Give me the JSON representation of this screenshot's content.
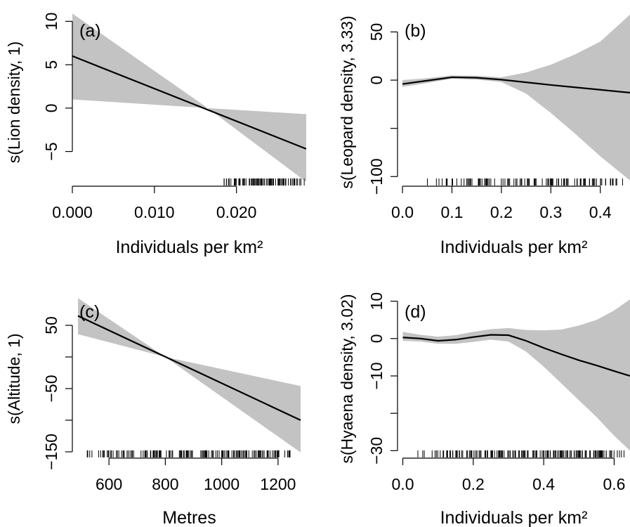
{
  "chart_data": [
    {
      "type": "line",
      "panel_label": "(a)",
      "xlabel": "Individuals per km²",
      "ylabel": "s(Lion density, 1)",
      "xlim": [
        0.0,
        0.0285
      ],
      "ylim": [
        -9,
        11
      ],
      "x_ticks": [
        0.0,
        0.01,
        0.02
      ],
      "x_tick_labels": [
        "0.000",
        "0.010",
        "0.020"
      ],
      "y_ticks": [
        -5,
        0,
        5,
        10
      ],
      "y_tick_labels": [
        "−5",
        "0",
        "5",
        "10"
      ],
      "fit": {
        "x": [
          0.0,
          0.0285
        ],
        "y": [
          6.0,
          -4.7
        ]
      },
      "ci_upper": {
        "x": [
          0.0,
          0.0165,
          0.0285
        ],
        "y": [
          10.9,
          0.0,
          -8.5
        ]
      },
      "ci_lower": {
        "x": [
          0.0,
          0.0165,
          0.0285
        ],
        "y": [
          1.0,
          0.0,
          -0.7
        ]
      },
      "rug": {
        "from": 0.018,
        "to": 0.0283,
        "count": 90
      }
    },
    {
      "type": "line",
      "panel_label": "(b)",
      "xlabel": "Individuals per km²",
      "ylabel": "s(Leopard density, 3.33)",
      "xlim": [
        -0.01,
        0.46
      ],
      "ylim": [
        -110,
        70
      ],
      "x_ticks": [
        0.0,
        0.1,
        0.2,
        0.3,
        0.4
      ],
      "x_tick_labels": [
        "0.0",
        "0.1",
        "0.2",
        "0.3",
        "0.4"
      ],
      "y_ticks": [
        -100,
        -50,
        0,
        50
      ],
      "y_tick_labels": [
        "−100",
        "",
        "0",
        "50"
      ],
      "fit": {
        "x": [
          0.0,
          0.05,
          0.1,
          0.15,
          0.2,
          0.3,
          0.4,
          0.46
        ],
        "y": [
          -4,
          -0.5,
          3,
          2.5,
          0.5,
          -5,
          -10,
          -13
        ]
      },
      "ci_upper": {
        "x": [
          0.0,
          0.05,
          0.1,
          0.15,
          0.2,
          0.25,
          0.3,
          0.35,
          0.4,
          0.46
        ],
        "y": [
          0,
          2,
          5,
          4.5,
          3,
          8,
          16,
          27,
          40,
          68
        ]
      },
      "ci_lower": {
        "x": [
          0.0,
          0.05,
          0.1,
          0.15,
          0.2,
          0.25,
          0.3,
          0.35,
          0.4,
          0.46
        ],
        "y": [
          -7,
          -3,
          1.5,
          0.5,
          -2,
          -14,
          -34,
          -56,
          -79,
          -104
        ]
      },
      "rug": {
        "from": 0.05,
        "to": 0.45,
        "count": 110
      }
    },
    {
      "type": "line",
      "panel_label": "(c)",
      "xlabel": "Metres",
      "ylabel": "s(Altitude, 1)",
      "xlim": [
        470,
        1300
      ],
      "ylim": [
        -160,
        100
      ],
      "x_ticks": [
        600,
        800,
        1000,
        1200
      ],
      "x_tick_labels": [
        "600",
        "800",
        "1000",
        "1200"
      ],
      "y_ticks": [
        -150,
        -100,
        -50,
        0,
        50
      ],
      "y_tick_labels": [
        "−150",
        "",
        "−50",
        "",
        "50"
      ],
      "fit": {
        "x": [
          490,
          1280
        ],
        "y": [
          65,
          -100
        ]
      },
      "ci_upper": {
        "x": [
          490,
          800,
          1280
        ],
        "y": [
          93,
          0,
          -151
        ]
      },
      "ci_lower": {
        "x": [
          490,
          800,
          1280
        ],
        "y": [
          36,
          0,
          -46
        ]
      },
      "rug": {
        "from": 490,
        "to": 1280,
        "count": 160
      }
    },
    {
      "type": "line",
      "panel_label": "(d)",
      "xlabel": "Individuals per km²",
      "ylabel": "s(Hyaena density, 3.02)",
      "xlim": [
        -0.015,
        0.645
      ],
      "ylim": [
        -32,
        12
      ],
      "x_ticks": [
        0.0,
        0.2,
        0.4,
        0.6
      ],
      "x_tick_labels": [
        "0.0",
        "0.2",
        "0.4",
        "0.6"
      ],
      "y_ticks": [
        -30,
        -20,
        -10,
        0,
        10
      ],
      "y_tick_labels": [
        "−30",
        "",
        "−10",
        "0",
        "10"
      ],
      "fit": {
        "x": [
          0.0,
          0.05,
          0.1,
          0.15,
          0.2,
          0.25,
          0.3,
          0.35,
          0.4,
          0.45,
          0.5,
          0.55,
          0.6,
          0.645
        ],
        "y": [
          0.3,
          0,
          -0.6,
          -0.3,
          0.4,
          1.0,
          0.9,
          -0.6,
          -2.5,
          -4.2,
          -5.8,
          -7.2,
          -8.7,
          -10
        ]
      },
      "ci_upper": {
        "x": [
          0.0,
          0.05,
          0.1,
          0.15,
          0.2,
          0.25,
          0.3,
          0.35,
          0.4,
          0.45,
          0.5,
          0.55,
          0.6,
          0.645
        ],
        "y": [
          1.8,
          1.0,
          0.5,
          0.9,
          1.8,
          2.5,
          2.8,
          2.3,
          2.2,
          2.4,
          3.5,
          5,
          7.5,
          10.5
        ]
      },
      "ci_lower": {
        "x": [
          0.0,
          0.05,
          0.1,
          0.15,
          0.2,
          0.25,
          0.3,
          0.35,
          0.4,
          0.45,
          0.5,
          0.55,
          0.6,
          0.645
        ],
        "y": [
          -0.6,
          -0.8,
          -1.4,
          -1.4,
          -0.9,
          -0.3,
          -0.8,
          -3.5,
          -7.5,
          -12,
          -16.5,
          -21,
          -26,
          -30
        ]
      },
      "rug": {
        "from": 0.04,
        "to": 0.64,
        "count": 170
      }
    }
  ]
}
